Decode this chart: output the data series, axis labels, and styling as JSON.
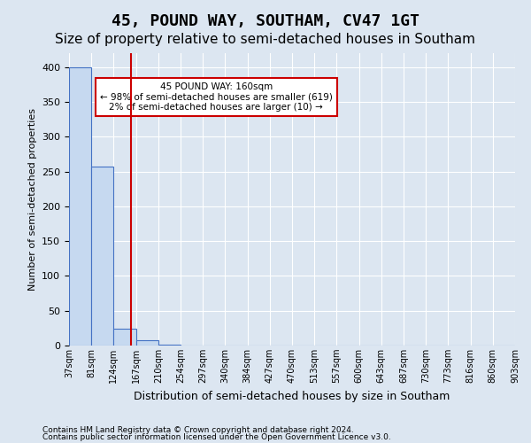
{
  "title": "45, POUND WAY, SOUTHAM, CV47 1GT",
  "subtitle": "Size of property relative to semi-detached houses in Southam",
  "xlabel": "Distribution of semi-detached houses by size in Southam",
  "ylabel": "Number of semi-detached properties",
  "footnote1": "Contains HM Land Registry data © Crown copyright and database right 2024.",
  "footnote2": "Contains public sector information licensed under the Open Government Licence v3.0.",
  "bin_labels": [
    "37sqm",
    "81sqm",
    "124sqm",
    "167sqm",
    "210sqm",
    "254sqm",
    "297sqm",
    "340sqm",
    "384sqm",
    "427sqm",
    "470sqm",
    "513sqm",
    "557sqm",
    "600sqm",
    "643sqm",
    "687sqm",
    "730sqm",
    "773sqm",
    "816sqm",
    "860sqm",
    "903sqm"
  ],
  "bar_values": [
    400,
    257,
    24,
    8,
    1,
    0,
    0,
    0,
    0,
    0,
    0,
    0,
    0,
    0,
    0,
    0,
    0,
    0,
    0,
    0
  ],
  "bar_color": "#c6d9f0",
  "bar_edge_color": "#4472c4",
  "property_line_x": 2.77,
  "property_line_color": "#cc0000",
  "annotation_text": "45 POUND WAY: 160sqm\n← 98% of semi-detached houses are smaller (619)\n2% of semi-detached houses are larger (10) →",
  "annotation_box_color": "#ffffff",
  "annotation_box_edge": "#cc0000",
  "ylim": [
    0,
    420
  ],
  "yticks": [
    0,
    50,
    100,
    150,
    200,
    250,
    300,
    350,
    400
  ],
  "background_color": "#dce6f1",
  "plot_bg_color": "#dce6f1",
  "grid_color": "#ffffff",
  "title_fontsize": 13,
  "subtitle_fontsize": 11
}
